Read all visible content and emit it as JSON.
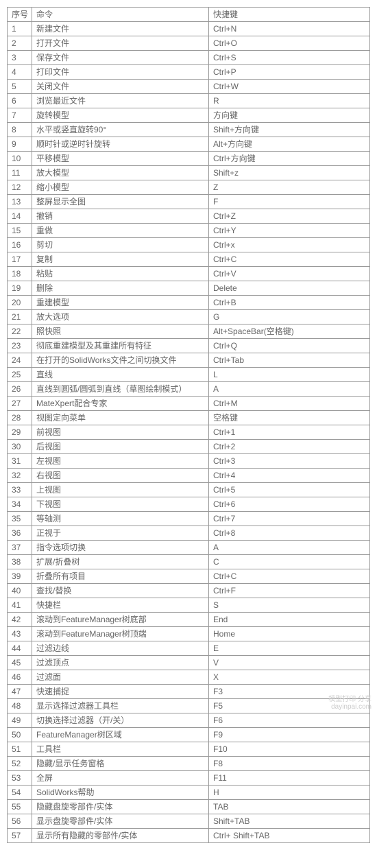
{
  "table": {
    "headers": {
      "idx": "序号",
      "cmd": "命令",
      "key": "快捷键"
    },
    "rows": [
      {
        "idx": "1",
        "cmd": "新建文件",
        "key": "Ctrl+N"
      },
      {
        "idx": "2",
        "cmd": "打开文件",
        "key": "Ctrl+O"
      },
      {
        "idx": "3",
        "cmd": "保存文件",
        "key": "Ctrl+S"
      },
      {
        "idx": "4",
        "cmd": "打印文件",
        "key": "Ctrl+P"
      },
      {
        "idx": "5",
        "cmd": "关闭文件",
        "key": "Ctrl+W"
      },
      {
        "idx": "6",
        "cmd": "浏览最近文件",
        "key": "R"
      },
      {
        "idx": "7",
        "cmd": "旋转模型",
        "key": "方向键"
      },
      {
        "idx": "8",
        "cmd": "水平或竖直旋转90°",
        "key": "Shift+方向键"
      },
      {
        "idx": "9",
        "cmd": "顺时针或逆时针旋转",
        "key": "Alt+方向键"
      },
      {
        "idx": "10",
        "cmd": "平移模型",
        "key": "Ctrl+方向键"
      },
      {
        "idx": "11",
        "cmd": "放大模型",
        "key": "Shift+z"
      },
      {
        "idx": "12",
        "cmd": "缩小模型",
        "key": "Z"
      },
      {
        "idx": "13",
        "cmd": "整屏显示全图",
        "key": "F"
      },
      {
        "idx": "14",
        "cmd": "撤销",
        "key": "Ctrl+Z"
      },
      {
        "idx": "15",
        "cmd": "重做",
        "key": "Ctrl+Y"
      },
      {
        "idx": "16",
        "cmd": "剪切",
        "key": "Ctrl+x"
      },
      {
        "idx": "17",
        "cmd": "复制",
        "key": "Ctrl+C"
      },
      {
        "idx": "18",
        "cmd": "粘贴",
        "key": "Ctrl+V"
      },
      {
        "idx": "19",
        "cmd": "删除",
        "key": "Delete"
      },
      {
        "idx": "20",
        "cmd": "重建模型",
        "key": "Ctrl+B"
      },
      {
        "idx": "21",
        "cmd": "放大选项",
        "key": "G"
      },
      {
        "idx": "22",
        "cmd": "照快照",
        "key": "Alt+SpaceBar(空格键)"
      },
      {
        "idx": "23",
        "cmd": "彻底重建模型及其重建所有特征",
        "key": "Ctrl+Q"
      },
      {
        "idx": "24",
        "cmd": "在打开的SolidWorks文件之间切换文件",
        "key": "Ctrl+Tab"
      },
      {
        "idx": "25",
        "cmd": "直线",
        "key": "L"
      },
      {
        "idx": "26",
        "cmd": "直线到圆弧/圆弧到直线（草图绘制模式）",
        "key": "A"
      },
      {
        "idx": "27",
        "cmd": "MateXpert配合专家",
        "key": "Ctrl+M"
      },
      {
        "idx": "28",
        "cmd": "视图定向菜单",
        "key": "空格键"
      },
      {
        "idx": "29",
        "cmd": "前视图",
        "key": "Ctrl+1"
      },
      {
        "idx": "30",
        "cmd": "后视图",
        "key": "Ctrl+2"
      },
      {
        "idx": "31",
        "cmd": "左视图",
        "key": "Ctrl+3"
      },
      {
        "idx": "32",
        "cmd": "右视图",
        "key": "Ctrl+4"
      },
      {
        "idx": "33",
        "cmd": "上视图",
        "key": "Ctrl+5"
      },
      {
        "idx": "34",
        "cmd": "下视图",
        "key": "Ctrl+6"
      },
      {
        "idx": "35",
        "cmd": "等轴测",
        "key": "Ctrl+7"
      },
      {
        "idx": "36",
        "cmd": "正视于",
        "key": "Ctrl+8"
      },
      {
        "idx": "37",
        "cmd": "指令选项切换",
        "key": "A"
      },
      {
        "idx": "38",
        "cmd": "扩展/折叠树",
        "key": "C"
      },
      {
        "idx": "39",
        "cmd": "折叠所有项目",
        "key": "Ctrl+C"
      },
      {
        "idx": "40",
        "cmd": "查找/替换",
        "key": "Ctrl+F"
      },
      {
        "idx": "41",
        "cmd": "快捷栏",
        "key": "S"
      },
      {
        "idx": "42",
        "cmd": "滚动到FeatureManager树底部",
        "key": "End"
      },
      {
        "idx": "43",
        "cmd": "滚动到FeatureManager树顶端",
        "key": "Home"
      },
      {
        "idx": "44",
        "cmd": "过滤边线",
        "key": "E"
      },
      {
        "idx": "45",
        "cmd": "过滤顶点",
        "key": "V"
      },
      {
        "idx": "46",
        "cmd": "过滤面",
        "key": "X"
      },
      {
        "idx": "47",
        "cmd": "快速捕捉",
        "key": "F3"
      },
      {
        "idx": "48",
        "cmd": "显示选择过滤器工具栏",
        "key": "F5"
      },
      {
        "idx": "49",
        "cmd": "切换选择过滤器（开/关）",
        "key": "F6"
      },
      {
        "idx": "50",
        "cmd": "FeatureManager树区域",
        "key": "F9"
      },
      {
        "idx": "51",
        "cmd": "工具栏",
        "key": "F10"
      },
      {
        "idx": "52",
        "cmd": "隐藏/显示任务窗格",
        "key": "F8"
      },
      {
        "idx": "53",
        "cmd": "全屏",
        "key": "F11"
      },
      {
        "idx": "54",
        "cmd": "SolidWorks帮助",
        "key": "H"
      },
      {
        "idx": "55",
        "cmd": "隐藏盘旋零部件/实体",
        "key": "TAB"
      },
      {
        "idx": "56",
        "cmd": "显示盘旋零部件/实体",
        "key": "Shift+TAB"
      },
      {
        "idx": "57",
        "cmd": "显示所有隐藏的零部件/实体",
        "key": "Ctrl+ Shift+TAB"
      }
    ]
  },
  "watermark": {
    "line1": "模型打印 分享",
    "line2": "dayinpai.com"
  }
}
